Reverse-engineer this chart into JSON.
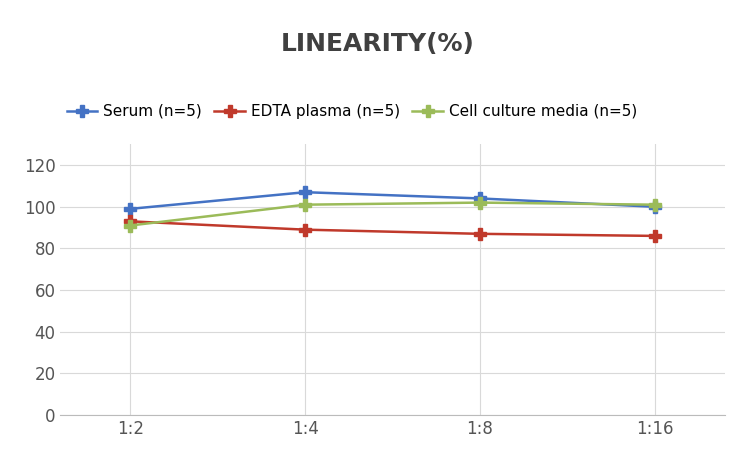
{
  "title": "LINEARITY(%)",
  "x_labels": [
    "1:2",
    "1:4",
    "1:8",
    "1:16"
  ],
  "x_positions": [
    0,
    1,
    2,
    3
  ],
  "series": [
    {
      "label": "Serum (n=5)",
      "values": [
        99,
        107,
        104,
        100
      ],
      "color": "#4472C4",
      "marker": "P",
      "markersize": 8
    },
    {
      "label": "EDTA plasma (n=5)",
      "values": [
        93,
        89,
        87,
        86
      ],
      "color": "#C0392B",
      "marker": "P",
      "markersize": 8
    },
    {
      "label": "Cell culture media (n=5)",
      "values": [
        91,
        101,
        102,
        101
      ],
      "color": "#9BBB59",
      "marker": "P",
      "markersize": 8
    }
  ],
  "ylim": [
    0,
    130
  ],
  "yticks": [
    0,
    20,
    40,
    60,
    80,
    100,
    120
  ],
  "grid_color": "#D9D9D9",
  "background_color": "#FFFFFF",
  "title_fontsize": 18,
  "legend_fontsize": 11,
  "tick_fontsize": 12,
  "title_color": "#404040"
}
